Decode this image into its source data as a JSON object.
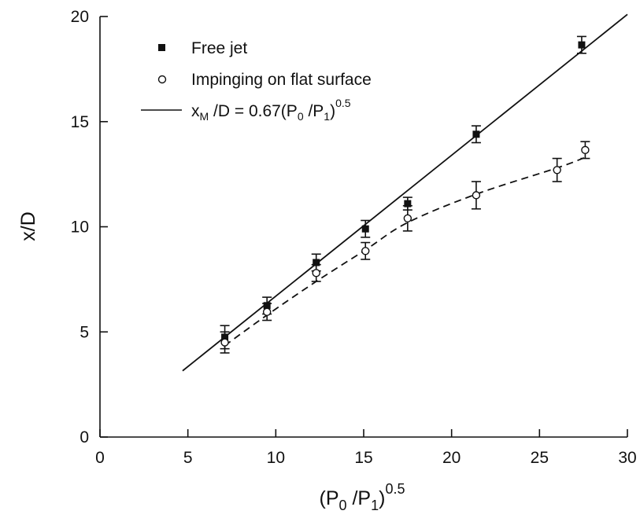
{
  "chart_data": {
    "type": "scatter",
    "title": "",
    "xlabel": {
      "main": "(P",
      "sub1": "0",
      "mid": " /P",
      "sub2": "1",
      "close": ")",
      "sup": "0.5"
    },
    "ylabel": "x/D",
    "xlim": [
      0,
      30
    ],
    "ylim": [
      0,
      20
    ],
    "xticks": [
      0,
      5,
      10,
      15,
      20,
      25,
      30
    ],
    "yticks": [
      0,
      5,
      10,
      15,
      20
    ],
    "grid": false,
    "legend_position": "top-left",
    "series": [
      {
        "name": "Free jet",
        "marker": "filled-square",
        "points": [
          {
            "x": 7.1,
            "y": 4.75,
            "err": 0.55
          },
          {
            "x": 9.5,
            "y": 6.25,
            "err": 0.4
          },
          {
            "x": 12.3,
            "y": 8.3,
            "err": 0.4
          },
          {
            "x": 15.1,
            "y": 9.9,
            "err": 0.4
          },
          {
            "x": 17.5,
            "y": 11.1,
            "err": 0.3
          },
          {
            "x": 21.4,
            "y": 14.4,
            "err": 0.4
          },
          {
            "x": 27.4,
            "y": 18.65,
            "err": 0.4
          }
        ]
      },
      {
        "name": "Impinging on flat surface",
        "marker": "open-circle",
        "points": [
          {
            "x": 7.1,
            "y": 4.5,
            "err": 0.5
          },
          {
            "x": 9.5,
            "y": 5.95,
            "err": 0.4
          },
          {
            "x": 12.3,
            "y": 7.8,
            "err": 0.4
          },
          {
            "x": 15.1,
            "y": 8.85,
            "err": 0.4
          },
          {
            "x": 17.5,
            "y": 10.4,
            "err": 0.6
          },
          {
            "x": 21.4,
            "y": 11.5,
            "err": 0.65
          },
          {
            "x": 26.0,
            "y": 12.7,
            "err": 0.55
          },
          {
            "x": 27.6,
            "y": 13.65,
            "err": 0.4
          }
        ]
      }
    ],
    "fit_line": {
      "name": {
        "a": "x",
        "sub_a": "M",
        "b": " /D = 0.67(P",
        "sub_b": "0",
        "c": " /P",
        "sub_c": "1",
        "d": ")",
        "sup": "0.5"
      },
      "style": "solid",
      "slope": 0.67,
      "x_range": [
        4.7,
        30
      ]
    },
    "trend_curve": {
      "style": "dashed",
      "points": [
        [
          7.1,
          4.35
        ],
        [
          9.5,
          5.8
        ],
        [
          12.3,
          7.4
        ],
        [
          15.1,
          8.9
        ],
        [
          17.5,
          10.2
        ],
        [
          21.4,
          11.55
        ],
        [
          26.0,
          12.8
        ],
        [
          27.6,
          13.3
        ]
      ]
    }
  }
}
